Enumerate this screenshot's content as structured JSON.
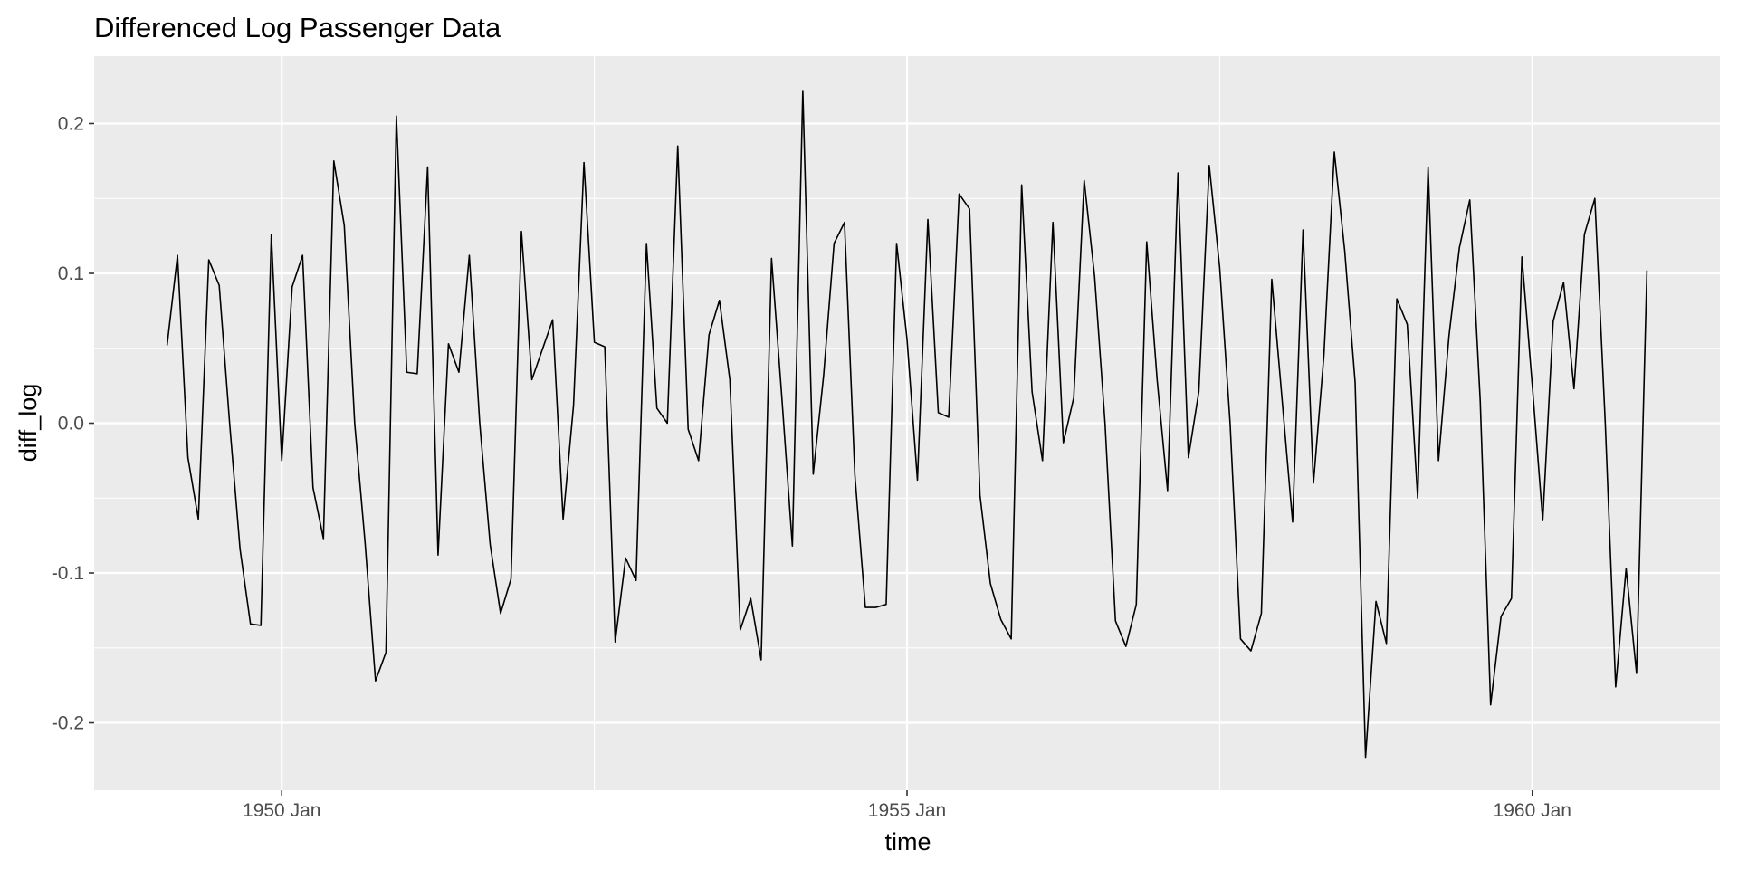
{
  "chart_data": {
    "type": "line",
    "title": "Differenced Log Passenger Data",
    "xlabel": "time",
    "ylabel": "diff_log",
    "x_axis_type": "date",
    "x_ticks": [
      {
        "date": "1950-01",
        "label": "1950 Jan"
      },
      {
        "date": "1955-01",
        "label": "1955 Jan"
      },
      {
        "date": "1960-01",
        "label": "1960 Jan"
      }
    ],
    "xlim": [
      "1948-07",
      "1961-07"
    ],
    "y_ticks": [
      {
        "value": -0.2,
        "label": "-0.2"
      },
      {
        "value": -0.1,
        "label": "-0.1"
      },
      {
        "value": 0.0,
        "label": "0.0"
      },
      {
        "value": 0.1,
        "label": "0.1"
      },
      {
        "value": 0.2,
        "label": "0.2"
      }
    ],
    "ylim": [
      -0.245,
      0.245
    ],
    "grid": true,
    "colors": {
      "panel_background": "#ebebeb",
      "grid_major": "#ffffff",
      "line": "#000000",
      "tick_label": "#4d4d4d"
    },
    "series": [
      {
        "x_start": "1949-02",
        "frequency": "monthly",
        "values": [
          0.052,
          0.112,
          -0.023,
          -0.064,
          0.109,
          0.092,
          0.0,
          -0.084,
          -0.134,
          -0.135,
          0.126,
          -0.025,
          0.091,
          0.112,
          -0.043,
          -0.077,
          0.175,
          0.132,
          0.0,
          -0.08,
          -0.172,
          -0.153,
          0.205,
          0.034,
          0.033,
          0.171,
          -0.088,
          0.053,
          0.034,
          0.112,
          0.0,
          -0.081,
          -0.127,
          -0.104,
          0.128,
          0.029,
          0.049,
          0.069,
          -0.064,
          0.012,
          0.174,
          0.054,
          0.051,
          -0.146,
          -0.09,
          -0.105,
          0.12,
          0.01,
          0.0,
          0.185,
          -0.004,
          -0.025,
          0.059,
          0.082,
          0.029,
          -0.138,
          -0.117,
          -0.158,
          0.11,
          0.016,
          -0.082,
          0.222,
          -0.034,
          0.032,
          0.12,
          0.134,
          -0.035,
          -0.123,
          -0.123,
          -0.121,
          0.12,
          0.056,
          -0.038,
          0.136,
          0.007,
          0.004,
          0.153,
          0.143,
          -0.048,
          -0.107,
          -0.131,
          -0.144,
          0.159,
          0.021,
          -0.025,
          0.134,
          -0.013,
          0.017,
          0.162,
          0.098,
          0.0,
          -0.132,
          -0.149,
          -0.121,
          0.121,
          0.029,
          -0.045,
          0.167,
          -0.023,
          0.021,
          0.172,
          0.104,
          0.0,
          -0.144,
          -0.152,
          -0.127,
          0.096,
          0.015,
          -0.066,
          0.129,
          -0.04,
          0.045,
          0.181,
          0.115,
          0.027,
          -0.223,
          -0.119,
          -0.147,
          0.083,
          0.066,
          -0.05,
          0.171,
          -0.025,
          0.058,
          0.117,
          0.149,
          0.015,
          -0.188,
          -0.129,
          -0.117,
          0.111,
          0.025,
          -0.065,
          0.068,
          0.094,
          0.023,
          0.126,
          0.15,
          0.0,
          -0.176,
          -0.097,
          -0.167,
          0.102
        ]
      }
    ]
  }
}
